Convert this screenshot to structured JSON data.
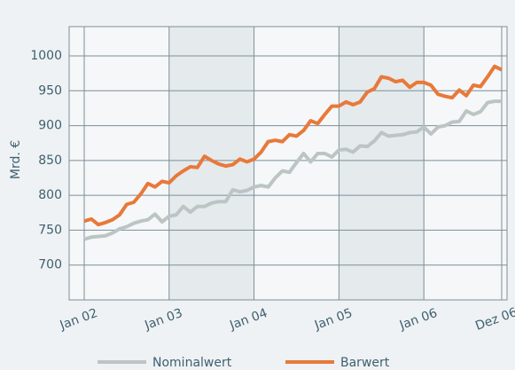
{
  "chart_data": {
    "type": "line",
    "y_label": "Mrd. €",
    "categories": [
      "Jan 02",
      null,
      null,
      null,
      null,
      null,
      null,
      null,
      null,
      null,
      null,
      null,
      "Jan 03",
      null,
      null,
      null,
      null,
      null,
      null,
      null,
      null,
      null,
      null,
      null,
      "Jan 04",
      null,
      null,
      null,
      null,
      null,
      null,
      null,
      null,
      null,
      null,
      null,
      "Jan 05",
      null,
      null,
      null,
      null,
      null,
      null,
      null,
      null,
      null,
      null,
      null,
      "Jan 06",
      null,
      null,
      null,
      null,
      null,
      null,
      null,
      null,
      null,
      null,
      "Dez 06"
    ],
    "series": [
      {
        "name": "Nominalwert",
        "color": "#bcc4c4",
        "values": [
          737,
          740,
          741,
          742,
          746,
          752,
          755,
          760,
          763,
          765,
          773,
          762,
          770,
          772,
          784,
          776,
          784,
          784,
          789,
          791,
          791,
          808,
          805,
          807,
          812,
          814,
          812,
          825,
          835,
          833,
          847,
          860,
          848,
          860,
          860,
          855,
          865,
          866,
          862,
          871,
          870,
          878,
          890,
          885,
          886,
          887,
          890,
          891,
          898,
          888,
          898,
          900,
          905,
          906,
          921,
          916,
          920,
          933,
          935,
          935
        ]
      },
      {
        "name": "Barwert",
        "color": "#e8793a",
        "values": [
          763,
          766,
          758,
          761,
          765,
          772,
          787,
          790,
          802,
          817,
          812,
          820,
          818,
          828,
          835,
          841,
          840,
          856,
          850,
          845,
          842,
          844,
          852,
          848,
          852,
          862,
          877,
          879,
          877,
          887,
          885,
          893,
          907,
          903,
          916,
          928,
          928,
          934,
          930,
          934,
          948,
          953,
          970,
          968,
          963,
          965,
          955,
          962,
          962,
          958,
          945,
          942,
          940,
          951,
          943,
          958,
          956,
          970,
          985,
          980
        ]
      }
    ],
    "ylim": [
      650,
      1042
    ],
    "yticks": [
      700,
      750,
      800,
      850,
      900,
      950,
      1000
    ],
    "grid": true
  }
}
